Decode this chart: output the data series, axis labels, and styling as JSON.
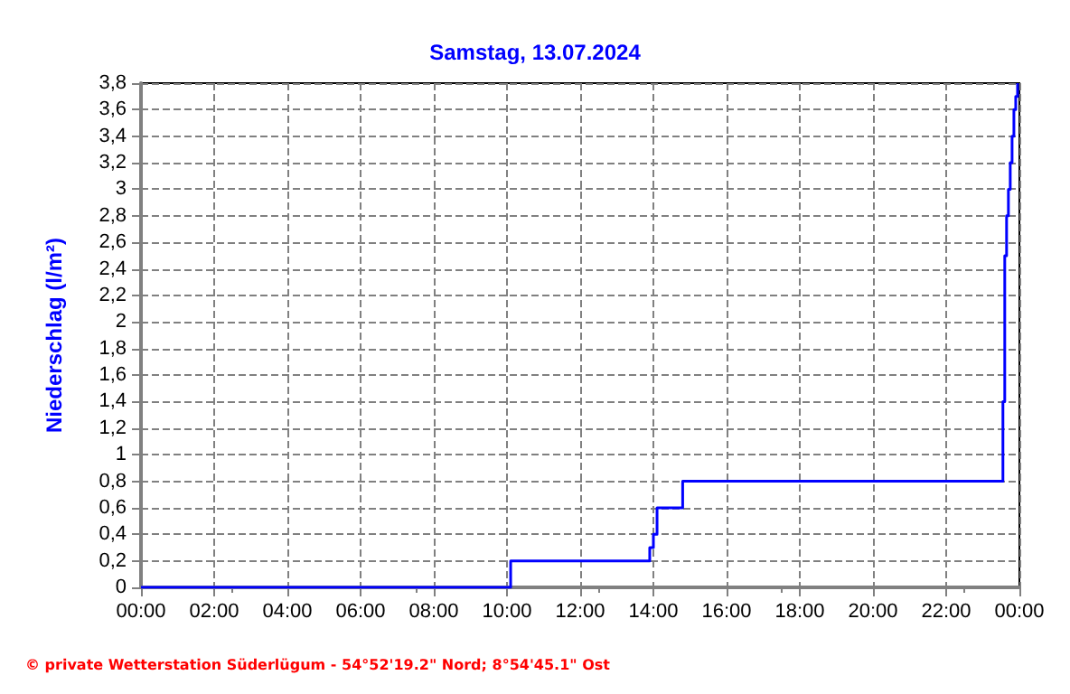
{
  "chart_data": {
    "type": "step",
    "title": "Samstag, 13.07.2024",
    "ylabel": "Niederschlag (l/m²)",
    "annotations": [
      "© private Wetterstation Süderlügum - 54°52'19.2\" Nord; 8°54'45.1\" Ost"
    ],
    "x": [
      0,
      10.1,
      13.9,
      14.0,
      14.1,
      14.8,
      23.55,
      23.6,
      23.65,
      23.7,
      23.75,
      23.8,
      23.85,
      23.9,
      23.95
    ],
    "series": [
      {
        "color": "#0000ff",
        "values": [
          0,
          0.2,
          0.3,
          0.4,
          0.6,
          0.8,
          1.4,
          2.5,
          2.8,
          3.0,
          3.2,
          3.4,
          3.6,
          3.7,
          3.8
        ]
      }
    ],
    "xlim": [
      0,
      24
    ],
    "xticks": [
      {
        "value": 0,
        "label": "00:00"
      },
      {
        "value": 2,
        "label": "02:00"
      },
      {
        "value": 4,
        "label": "04:00"
      },
      {
        "value": 6,
        "label": "06:00"
      },
      {
        "value": 8,
        "label": "08:00"
      },
      {
        "value": 10,
        "label": "10:00"
      },
      {
        "value": 12,
        "label": "12:00"
      },
      {
        "value": 14,
        "label": "14:00"
      },
      {
        "value": 16,
        "label": "16:00"
      },
      {
        "value": 18,
        "label": "18:00"
      },
      {
        "value": 20,
        "label": "20:00"
      },
      {
        "value": 22,
        "label": "22:00"
      },
      {
        "value": 24,
        "label": "00:00"
      }
    ],
    "ylim": [
      0,
      3.8
    ],
    "yticks": [
      0,
      {
        "value": 0.2,
        "label": "0,2"
      },
      {
        "value": 0.4,
        "label": "0,4"
      },
      {
        "value": 0.6,
        "label": "0,6"
      },
      {
        "value": 0.8,
        "label": "0,8"
      },
      1,
      {
        "value": 1.2,
        "label": "1,2"
      },
      {
        "value": 1.4,
        "label": "1,4"
      },
      {
        "value": 1.6,
        "label": "1,6"
      },
      {
        "value": 1.8,
        "label": "1,8"
      },
      2,
      {
        "value": 2.2,
        "label": "2,2"
      },
      {
        "value": 2.4,
        "label": "2,4"
      },
      {
        "value": 2.6,
        "label": "2,6"
      },
      {
        "value": 2.8,
        "label": "2,8"
      },
      3,
      {
        "value": 3.2,
        "label": "3,2"
      },
      {
        "value": 3.4,
        "label": "3,4"
      },
      {
        "value": 3.6,
        "label": "3,6"
      },
      {
        "value": 3.8,
        "label": "3,8"
      }
    ],
    "grid": true,
    "line_style": "solid",
    "marker": "none"
  }
}
